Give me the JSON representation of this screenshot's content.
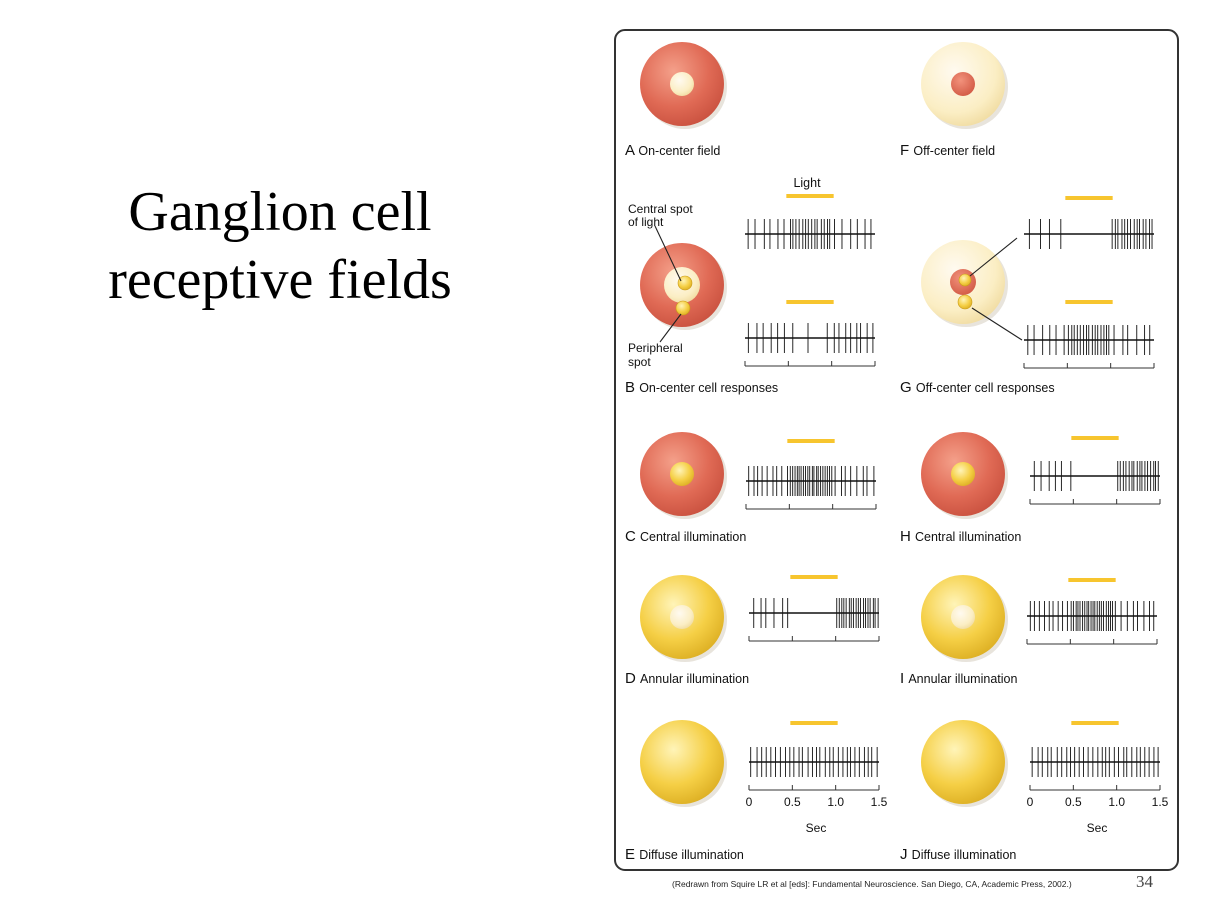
{
  "slide": {
    "title_line1": "Ganglion cell",
    "title_line2": "receptive fields",
    "citation": "(Redrawn from Squire LR et al [eds]: Fundamental Neuroscience. San Diego, CA, Academic Press, 2002.)",
    "page_number": "34"
  },
  "colors": {
    "on_red": "#e06a55",
    "off_pale": "#fbeec4",
    "light_yellow": "#f5cf45",
    "light_bar": "#f7c52e",
    "border": "#333333"
  },
  "panels": [
    {
      "letter": "A",
      "label": "On-center field"
    },
    {
      "letter": "F",
      "label": "Off-center field"
    },
    {
      "letter": "B",
      "label": "On-center cell responses"
    },
    {
      "letter": "G",
      "label": "Off-center cell responses"
    },
    {
      "letter": "C",
      "label": "Central illumination"
    },
    {
      "letter": "H",
      "label": "Central illumination"
    },
    {
      "letter": "D",
      "label": "Annular illumination"
    },
    {
      "letter": "I",
      "label": "Annular illumination"
    },
    {
      "letter": "E",
      "label": "Diffuse illumination"
    },
    {
      "letter": "J",
      "label": "Diffuse illumination"
    }
  ],
  "annotations": {
    "light": "Light",
    "central_spot": [
      "Central spot",
      "of light"
    ],
    "peripheral_spot": [
      "Peripheral",
      "spot"
    ]
  },
  "time_axis": {
    "ticks": [
      "0",
      "0.5",
      "1.0",
      "1.5"
    ],
    "unit": "Sec",
    "stimulus_window_sec": [
      0.5,
      1.0
    ]
  }
}
